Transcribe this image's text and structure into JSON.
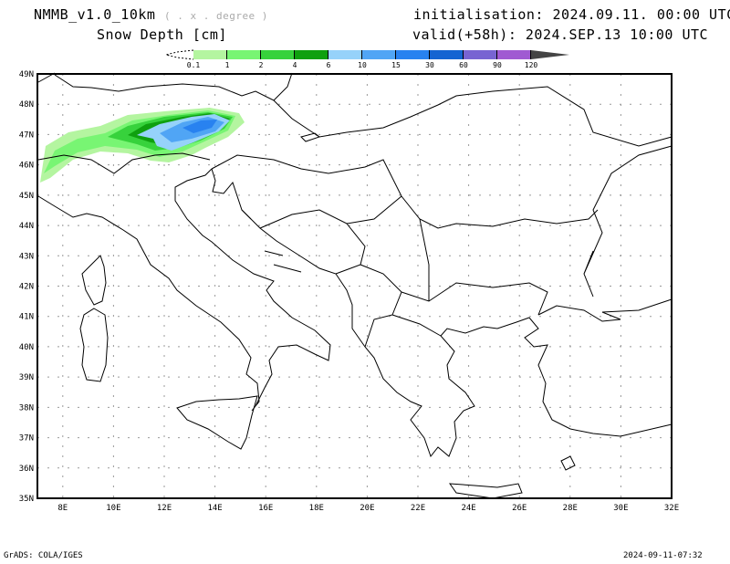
{
  "header": {
    "model": "NMMB_v1.0_10km",
    "resolution": "( . x . degree )",
    "variable": "Snow Depth [cm]",
    "initialisation": "initialisation: 2024.09.11.  00:00 UTC",
    "valid": "valid(+58h): 2024.SEP.13 10:00 UTC"
  },
  "colorbar": {
    "labels": [
      "0.1",
      "1",
      "2",
      "4",
      "6",
      "10",
      "15",
      "30",
      "60",
      "90",
      "120"
    ],
    "colors": [
      "#b4f5a0",
      "#78f573",
      "#37d23c",
      "#0fa00f",
      "#96d2fa",
      "#50a5f5",
      "#2882f0",
      "#1464d2",
      "#7864d2",
      "#a05ad2"
    ],
    "over_color": "#444444"
  },
  "map": {
    "lon_range": [
      7,
      32
    ],
    "lat_range": [
      35,
      49
    ],
    "lon_ticks": [
      "8E",
      "10E",
      "12E",
      "14E",
      "16E",
      "18E",
      "20E",
      "22E",
      "24E",
      "26E",
      "28E",
      "30E",
      "32E"
    ],
    "lat_ticks": [
      "35N",
      "36N",
      "37N",
      "38N",
      "39N",
      "40N",
      "41N",
      "42N",
      "43N",
      "44N",
      "45N",
      "46N",
      "47N",
      "48N",
      "49N"
    ]
  },
  "footer": {
    "left": "GrADS: COLA/IGES",
    "right": "2024-09-11-07:32"
  }
}
